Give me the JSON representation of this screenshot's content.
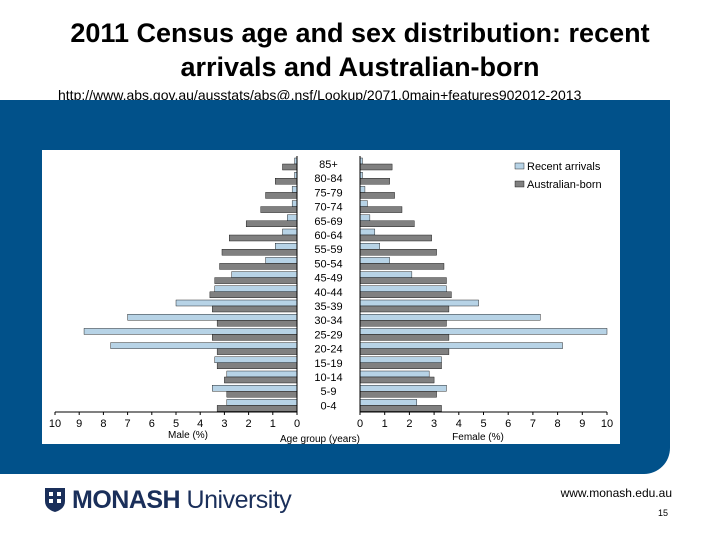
{
  "slide": {
    "title_line1": "2011 Census age and sex distribution: recent",
    "title_line2": "arrivals and Australian-born",
    "source_url": "http://www.abs.gov.au/ausstats/abs@.nsf/Lookup/2071.0main+features902012-2013",
    "footer_logo_bold": "MONASH",
    "footer_logo_rest": " University",
    "footer_site": "www.monash.edu.au",
    "page_number": "15"
  },
  "colors": {
    "band": "#01518a",
    "recent": "#b7d3e6",
    "australian": "#808080"
  },
  "chart_data": {
    "type": "bar",
    "orientation": "horizontal-population-pyramid",
    "categories": [
      "85+",
      "80-84",
      "75-79",
      "70-74",
      "65-69",
      "60-64",
      "55-59",
      "50-54",
      "45-49",
      "40-44",
      "35-39",
      "30-34",
      "25-29",
      "20-24",
      "15-19",
      "10-14",
      "5-9",
      "0-4"
    ],
    "series": [
      {
        "name": "Recent arrivals",
        "male": [
          0.1,
          0.1,
          0.2,
          0.2,
          0.4,
          0.6,
          0.9,
          1.3,
          2.7,
          3.4,
          5.0,
          7.0,
          8.8,
          7.7,
          3.4,
          2.9,
          3.5,
          2.9
        ],
        "female": [
          0.1,
          0.1,
          0.2,
          0.3,
          0.4,
          0.6,
          0.8,
          1.2,
          2.1,
          3.5,
          4.8,
          7.3,
          10.0,
          8.2,
          3.3,
          2.8,
          3.5,
          2.3
        ]
      },
      {
        "name": "Australian-born",
        "male": [
          0.6,
          0.9,
          1.3,
          1.5,
          2.1,
          2.8,
          3.1,
          3.2,
          3.4,
          3.6,
          3.5,
          3.3,
          3.5,
          3.3,
          3.3,
          3.0,
          2.9,
          3.3
        ],
        "female": [
          1.3,
          1.2,
          1.4,
          1.7,
          2.2,
          2.9,
          3.1,
          3.4,
          3.5,
          3.7,
          3.6,
          3.5,
          3.6,
          3.6,
          3.3,
          3.0,
          3.1,
          3.3
        ]
      }
    ],
    "male_axis": {
      "label": "Male (%)",
      "ticks": [
        "10",
        "9",
        "8",
        "7",
        "6",
        "5",
        "4",
        "3",
        "2",
        "1",
        "0"
      ],
      "range": [
        0,
        10
      ]
    },
    "female_axis": {
      "label": "Female (%)",
      "ticks": [
        "0",
        "1",
        "2",
        "3",
        "4",
        "5",
        "6",
        "7",
        "8",
        "9",
        "10"
      ],
      "range": [
        0,
        10
      ]
    },
    "center_label": "Age group (years)",
    "legend_position": "top-right",
    "grid": false
  }
}
